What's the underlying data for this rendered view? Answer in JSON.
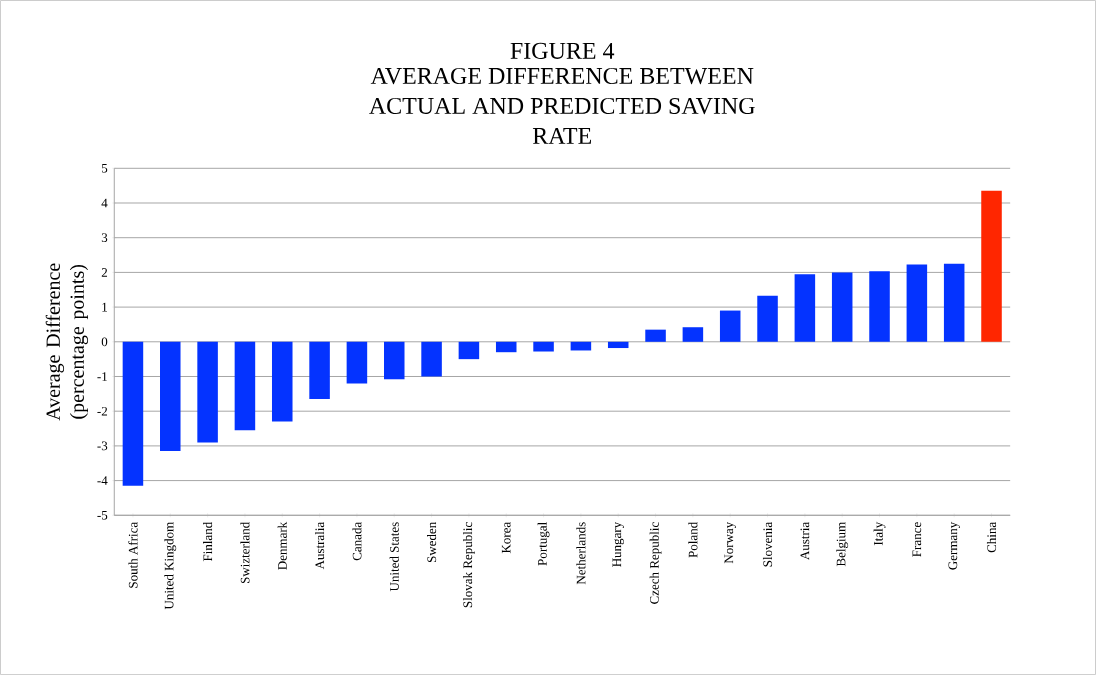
{
  "chart_data": {
    "type": "bar",
    "title": "FIGURE 4",
    "subtitle": "AVERAGE DIFFERENCE BETWEEN ACTUAL AND PREDICTED SAVING RATE",
    "ylabel": "Average Difference (percentage points)",
    "categories": [
      "South Africa",
      "United Kingdom",
      "Finland",
      "Swizterland",
      "Denmark",
      "Australia",
      "Canada",
      "United States",
      "Sweden",
      "Slovak Republic",
      "Korea",
      "Portugal",
      "Netherlands",
      "Hungary",
      "Czech Republic",
      "Poland",
      "Norway",
      "Slovenia",
      "Austria",
      "Belgium",
      "Italy",
      "France",
      "Germany",
      "China"
    ],
    "values": [
      -4.15,
      -3.15,
      -2.9,
      -2.55,
      -2.3,
      -1.65,
      -1.2,
      -1.08,
      -1.0,
      -0.5,
      -0.3,
      -0.28,
      -0.25,
      -0.18,
      0.35,
      0.42,
      0.9,
      1.33,
      1.95,
      2.0,
      2.03,
      2.23,
      2.25,
      4.35
    ],
    "colors": [
      "#0433ff",
      "#0433ff",
      "#0433ff",
      "#0433ff",
      "#0433ff",
      "#0433ff",
      "#0433ff",
      "#0433ff",
      "#0433ff",
      "#0433ff",
      "#0433ff",
      "#0433ff",
      "#0433ff",
      "#0433ff",
      "#0433ff",
      "#0433ff",
      "#0433ff",
      "#0433ff",
      "#0433ff",
      "#0433ff",
      "#0433ff",
      "#0433ff",
      "#0433ff",
      "#ff2600"
    ],
    "ylim": [
      -5,
      5
    ],
    "yticks": [
      -5,
      -4,
      -3,
      -2,
      -1,
      0,
      1,
      2,
      3,
      4,
      5
    ],
    "grid": "y"
  }
}
